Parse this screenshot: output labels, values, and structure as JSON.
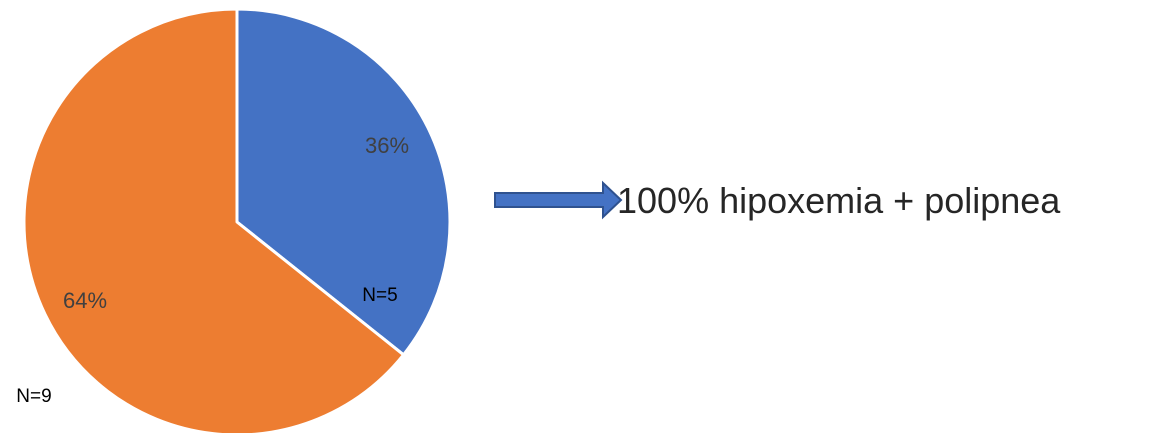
{
  "chart_data": {
    "type": "pie",
    "title": "",
    "slices": [
      {
        "label_pct": "36%",
        "label_n": "N=5",
        "value": 5,
        "percent": 36,
        "color": "#4472C4"
      },
      {
        "label_pct": "64%",
        "label_n": "N=9",
        "value": 9,
        "percent": 64,
        "color": "#ED7D31"
      }
    ],
    "legend": "none"
  },
  "callout": {
    "text": "100% hipoxemia + polipnea",
    "arrow_color": "#4472C4",
    "arrow_border": "#2F528F"
  }
}
